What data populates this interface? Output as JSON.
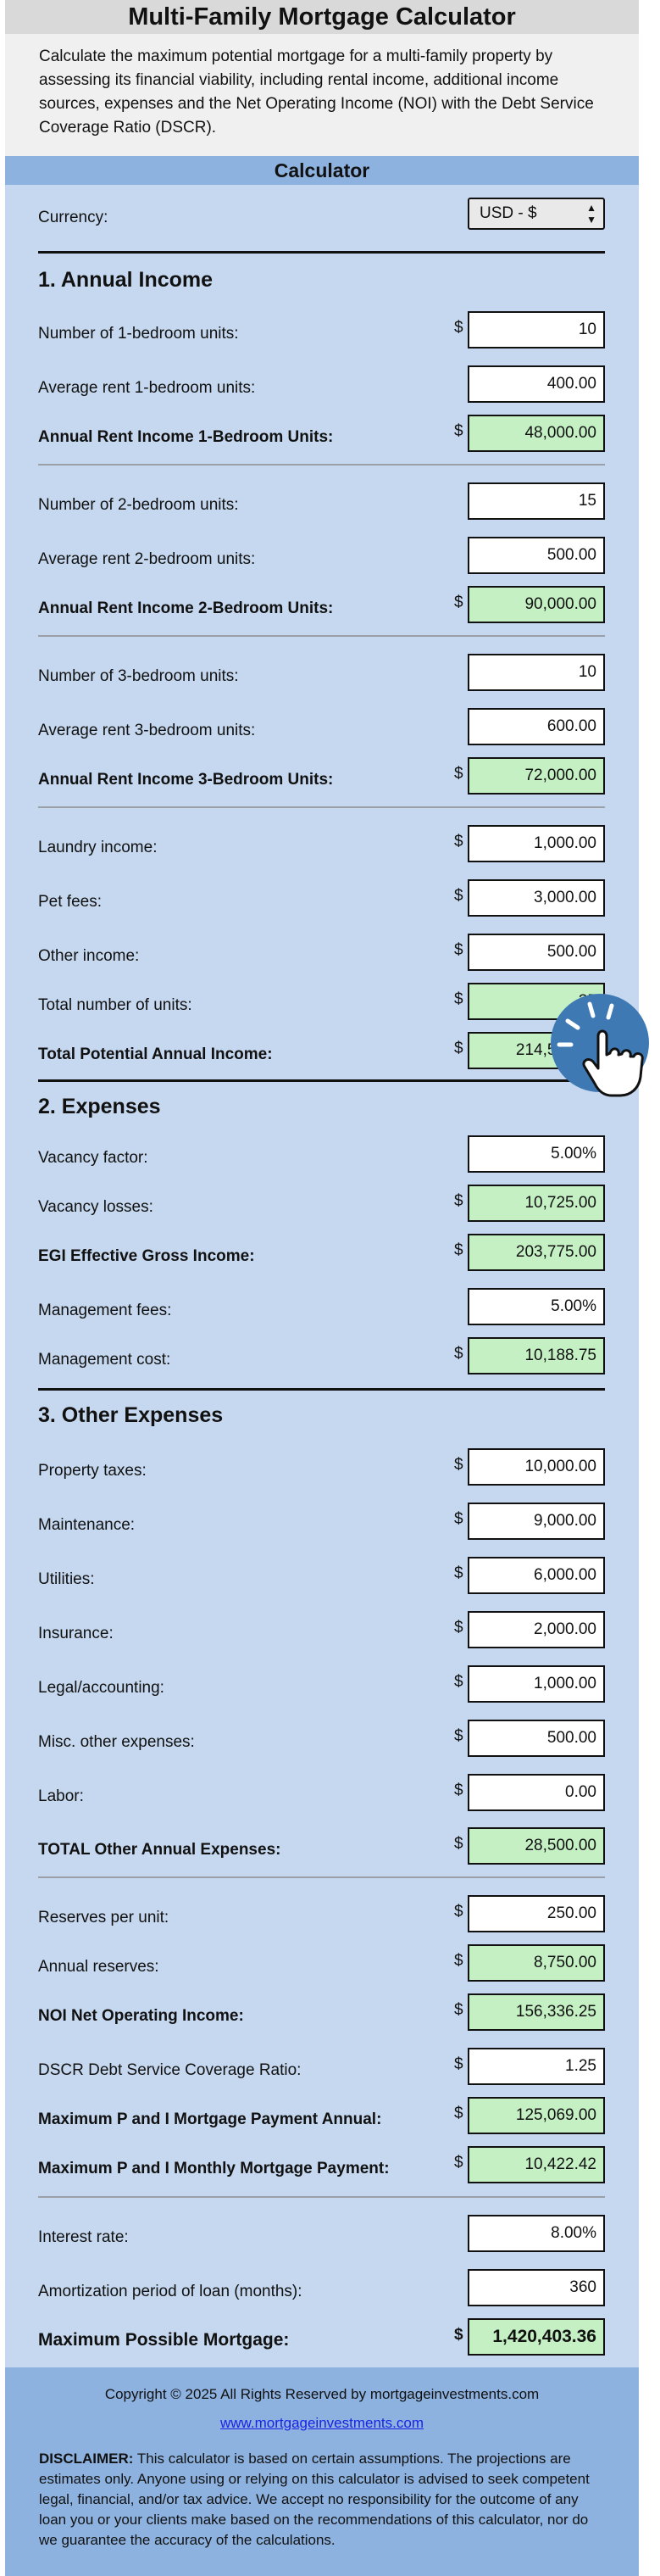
{
  "title": "Multi-Family Mortgage Calculator",
  "intro": "Calculate the maximum potential mortgage for a multi-family property by assessing its financial viability, including rental income, additional income sources, expenses and the Net Operating Income (NOI) with the Debt Service Coverage Ratio (DSCR).",
  "calculator_header": "Calculator",
  "currency": {
    "label": "Currency:",
    "selected": "USD - $"
  },
  "sections": {
    "annual_income": "1. Annual Income",
    "expenses": "2. Expenses",
    "other_expenses": "3. Other Expenses"
  },
  "rows": {
    "units_1br": {
      "label": "Number of 1-bedroom units:",
      "currency": "$",
      "value": "10"
    },
    "rent_1br": {
      "label": "Average rent 1-bedroom units:",
      "currency": "",
      "value": "400.00"
    },
    "income_1br": {
      "label": "Annual Rent Income 1-Bedroom Units:",
      "currency": "$",
      "value": "48,000.00"
    },
    "units_2br": {
      "label": "Number of 2-bedroom units:",
      "currency": "",
      "value": "15"
    },
    "rent_2br": {
      "label": "Average rent 2-bedroom units:",
      "currency": "",
      "value": "500.00"
    },
    "income_2br": {
      "label": "Annual Rent Income 2-Bedroom Units:",
      "currency": "$",
      "value": "90,000.00"
    },
    "units_3br": {
      "label": "Number of 3-bedroom units:",
      "currency": "",
      "value": "10"
    },
    "rent_3br": {
      "label": "Average rent 3-bedroom units:",
      "currency": "",
      "value": "600.00"
    },
    "income_3br": {
      "label": "Annual Rent Income 3-Bedroom Units:",
      "currency": "$",
      "value": "72,000.00"
    },
    "laundry": {
      "label": "Laundry income:",
      "currency": "$",
      "value": "1,000.00"
    },
    "pet_fees": {
      "label": "Pet fees:",
      "currency": "$",
      "value": "3,000.00"
    },
    "other_income": {
      "label": "Other income:",
      "currency": "$",
      "value": "500.00"
    },
    "total_units": {
      "label": "Total number of units:",
      "currency": "$",
      "value": "35"
    },
    "total_potential": {
      "label": "Total Potential Annual Income:",
      "currency": "$",
      "value": "214,500.00"
    },
    "vacancy_factor": {
      "label": "Vacancy factor:",
      "currency": "",
      "value": "5.00%"
    },
    "vacancy_losses": {
      "label": "Vacancy losses:",
      "currency": "$",
      "value": "10,725.00"
    },
    "egi": {
      "label": "EGI Effective Gross Income:",
      "currency": "$",
      "value": "203,775.00"
    },
    "management_fees": {
      "label": "Management fees:",
      "currency": "",
      "value": "5.00%"
    },
    "management_cost": {
      "label": "Management cost:",
      "currency": "$",
      "value": "10,188.75"
    },
    "property_taxes": {
      "label": "Property taxes:",
      "currency": "$",
      "value": "10,000.00"
    },
    "maintenance": {
      "label": "Maintenance:",
      "currency": "$",
      "value": "9,000.00"
    },
    "utilities": {
      "label": "Utilities:",
      "currency": "$",
      "value": "6,000.00"
    },
    "insurance": {
      "label": "Insurance:",
      "currency": "$",
      "value": "2,000.00"
    },
    "legal": {
      "label": "Legal/accounting:",
      "currency": "$",
      "value": "1,000.00"
    },
    "misc": {
      "label": "Misc. other expenses:",
      "currency": "$",
      "value": "500.00"
    },
    "labor": {
      "label": "Labor:",
      "currency": "$",
      "value": "0.00"
    },
    "total_other": {
      "label": "TOTAL Other Annual Expenses:",
      "currency": "$",
      "value": "28,500.00"
    },
    "reserves_per_unit": {
      "label": "Reserves per unit:",
      "currency": "$",
      "value": "250.00"
    },
    "annual_reserves": {
      "label": "Annual reserves:",
      "currency": "$",
      "value": "8,750.00"
    },
    "noi": {
      "label": "NOI Net Operating Income:",
      "currency": "$",
      "value": "156,336.25"
    },
    "dscr": {
      "label": "DSCR Debt Service Coverage Ratio:",
      "currency": "$",
      "value": "1.25"
    },
    "max_annual": {
      "label": "Maximum P and I Mortgage Payment Annual:",
      "currency": "$",
      "value": "125,069.00"
    },
    "max_monthly": {
      "label": "Maximum P and I Monthly Mortgage Payment:",
      "currency": "$",
      "value": "10,422.42"
    },
    "interest_rate": {
      "label": "Interest rate:",
      "currency": "",
      "value": "8.00%"
    },
    "amortization": {
      "label": "Amortization period of loan (months):",
      "currency": "",
      "value": "360"
    },
    "max_mortgage": {
      "label": "Maximum Possible Mortgage:",
      "currency": "$",
      "value": "1,420,403.36"
    }
  },
  "footer": {
    "copyright": "Copyright © 2025 All Rights Reserved by mortgageinvestments.com",
    "link": "www.mortgageinvestments.com",
    "disclaimer_title": "DISCLAIMER:",
    "disclaimer_text": " This calculator is based on certain assumptions. The projections are estimates only. Anyone using or relying on this calculator is advised to seek competent legal, financial, and/or tax advice. We accept no responsibility for the outcome of any loan you or your clients make based on the recommendations of this calculator, nor do we guarantee the accuracy of the calculations."
  },
  "colors": {
    "panel": "#c5d8ef",
    "header_band": "#8db2e0",
    "computed_field": "#c4f0c4",
    "cursor_circle": "#3f79b3"
  },
  "icons": {
    "cursor": "hand-pointer-icon",
    "select": "chevron-updown-icon"
  }
}
